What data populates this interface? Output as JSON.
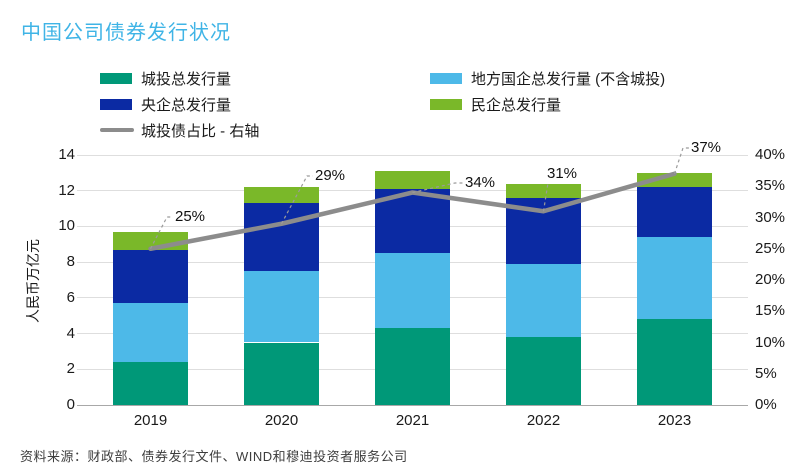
{
  "title": "中国公司债券发行状况",
  "title_color": "#3fb4e6",
  "source": "资料来源：财政部、债券发行文件、WIND和穆迪投资者服务公司",
  "chart_data": {
    "type": "bar",
    "stacked": true,
    "title": "中国公司债券发行状况",
    "categories": [
      "2019",
      "2020",
      "2021",
      "2022",
      "2023"
    ],
    "series": [
      {
        "name": "城投总发行量",
        "color": "#009878",
        "values": [
          2.4,
          3.5,
          4.3,
          3.8,
          4.8
        ]
      },
      {
        "name": "地方国企总发行量 (不含城投)",
        "color": "#4db9e8",
        "values": [
          3.3,
          4.0,
          4.2,
          4.1,
          4.6
        ]
      },
      {
        "name": "央企总发行量",
        "color": "#0b2aa3",
        "values": [
          3.0,
          3.8,
          3.6,
          3.7,
          2.8
        ]
      },
      {
        "name": "民企总发行量",
        "color": "#7ab829",
        "values": [
          1.0,
          0.9,
          1.0,
          0.8,
          0.8
        ]
      }
    ],
    "line_series": {
      "name": "城投债占比 - 右轴",
      "color": "#8c8c8c",
      "axis": "right",
      "values": [
        25,
        29,
        34,
        31,
        37
      ],
      "labels": [
        "25%",
        "29%",
        "34%",
        "31%",
        "37%"
      ]
    },
    "left_axis": {
      "label": "人民币万亿元",
      "min": 0,
      "max": 14,
      "step": 2
    },
    "right_axis": {
      "min": 0,
      "max": 40,
      "step": 5,
      "suffix": "%"
    },
    "grid": true,
    "legend_position": "top"
  }
}
